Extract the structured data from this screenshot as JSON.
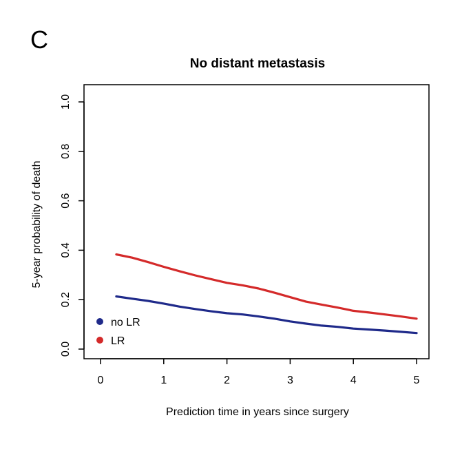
{
  "panel_letter": "C",
  "chart_data": {
    "type": "line",
    "title": "No distant metastasis",
    "xlabel": "Prediction time in years since surgery",
    "ylabel": "5-year probability of death",
    "xlim": [
      0,
      5
    ],
    "ylim": [
      0,
      1
    ],
    "xticks": [
      0,
      1,
      2,
      3,
      4,
      5
    ],
    "yticks": [
      "0.0",
      "0.2",
      "0.4",
      "0.6",
      "0.8",
      "1.0"
    ],
    "grid": false,
    "legend_position": "bottom-left",
    "x": [
      0.25,
      0.5,
      0.75,
      1.0,
      1.25,
      1.5,
      1.75,
      2.0,
      2.25,
      2.5,
      2.75,
      3.0,
      3.25,
      3.5,
      3.75,
      4.0,
      4.25,
      4.5,
      4.75,
      5.0
    ],
    "series": [
      {
        "name": "no LR",
        "color": "#1f2a8a",
        "values": [
          0.213,
          0.204,
          0.195,
          0.184,
          0.172,
          0.162,
          0.153,
          0.145,
          0.14,
          0.132,
          0.123,
          0.112,
          0.103,
          0.095,
          0.09,
          0.083,
          0.079,
          0.075,
          0.07,
          0.065
        ]
      },
      {
        "name": "LR",
        "color": "#d42a2a",
        "values": [
          0.383,
          0.37,
          0.352,
          0.333,
          0.315,
          0.298,
          0.283,
          0.268,
          0.258,
          0.245,
          0.228,
          0.21,
          0.192,
          0.18,
          0.168,
          0.155,
          0.148,
          0.14,
          0.132,
          0.123
        ]
      }
    ]
  }
}
